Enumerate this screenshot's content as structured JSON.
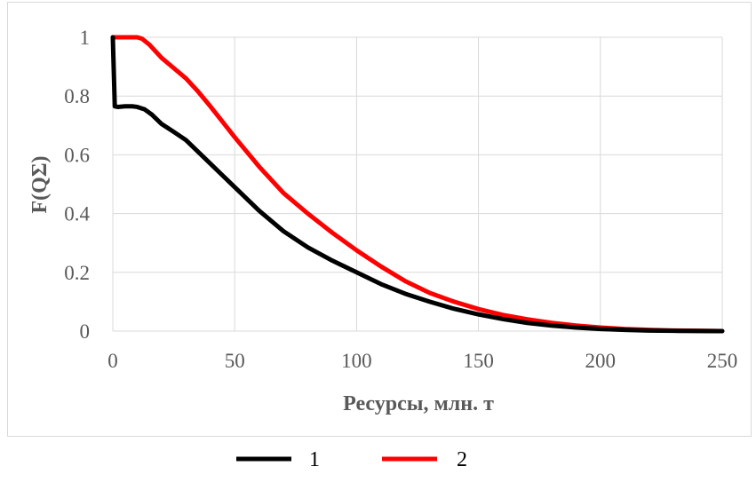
{
  "chart_data": {
    "type": "line",
    "xlabel": "Ресурсы, млн. т",
    "ylabel": "F(QΣ)",
    "xlim": [
      0,
      250
    ],
    "ylim": [
      0,
      1
    ],
    "x_ticks": [
      "0",
      "50",
      "100",
      "150",
      "200",
      "250"
    ],
    "y_ticks": [
      "0",
      "0.2",
      "0.4",
      "0.6",
      "0.8",
      "1"
    ],
    "grid": true,
    "legend_position": "bottom",
    "series": [
      {
        "name": "1",
        "color": "#000000",
        "x": [
          0,
          0.8,
          2,
          5,
          8,
          10,
          13,
          16,
          20,
          25,
          30,
          35,
          40,
          50,
          60,
          70,
          80,
          90,
          100,
          110,
          120,
          130,
          140,
          150,
          160,
          170,
          180,
          190,
          200,
          210,
          220,
          230,
          240,
          250
        ],
        "y": [
          1.0,
          0.765,
          0.763,
          0.765,
          0.765,
          0.763,
          0.755,
          0.737,
          0.705,
          0.678,
          0.65,
          0.61,
          0.57,
          0.49,
          0.41,
          0.34,
          0.285,
          0.24,
          0.2,
          0.16,
          0.127,
          0.1,
          0.076,
          0.057,
          0.041,
          0.028,
          0.019,
          0.012,
          0.007,
          0.004,
          0.002,
          0.001,
          0.0005,
          0.0
        ]
      },
      {
        "name": "2",
        "color": "#ff0000",
        "x": [
          0,
          5,
          10,
          12,
          15,
          20,
          25,
          30,
          35,
          40,
          50,
          60,
          70,
          80,
          90,
          100,
          110,
          120,
          130,
          140,
          150,
          160,
          170,
          180,
          190,
          200,
          210,
          220,
          230,
          240,
          250
        ],
        "y": [
          1.0,
          1.0,
          1.0,
          0.995,
          0.975,
          0.93,
          0.895,
          0.86,
          0.815,
          0.765,
          0.66,
          0.56,
          0.47,
          0.4,
          0.335,
          0.275,
          0.22,
          0.17,
          0.13,
          0.1,
          0.075,
          0.055,
          0.04,
          0.028,
          0.019,
          0.012,
          0.007,
          0.004,
          0.002,
          0.001,
          0.0
        ]
      }
    ]
  }
}
